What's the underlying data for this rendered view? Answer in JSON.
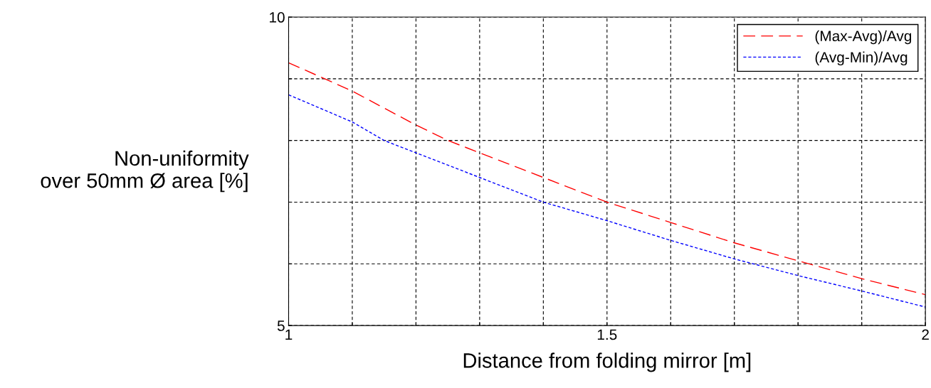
{
  "chart_data": {
    "type": "line",
    "xlabel": "Distance from folding mirror [m]",
    "ylabel": "Non-uniformity\nover 50mm Ø area [%]",
    "xlim": [
      1,
      2
    ],
    "ylim": [
      5,
      10
    ],
    "xticks": [
      1,
      {
        "value": 1.1,
        "label": null
      },
      {
        "value": 1.2,
        "label": null
      },
      {
        "value": 1.3,
        "label": null
      },
      {
        "value": 1.4,
        "label": null
      },
      1.5,
      {
        "value": 1.6,
        "label": null
      },
      {
        "value": 1.7,
        "label": null
      },
      {
        "value": 1.8,
        "label": null
      },
      {
        "value": 1.9,
        "label": null
      },
      2
    ],
    "yticks": [
      5,
      {
        "value": 6,
        "label": null
      },
      {
        "value": 7,
        "label": null
      },
      {
        "value": 8,
        "label": null
      },
      {
        "value": 9,
        "label": null
      },
      10
    ],
    "grid": true,
    "legend": "top right",
    "series": [
      {
        "name": "(Max-Avg)/Avg",
        "color": "#ff0000",
        "line_style": "dashed",
        "x": [
          1,
          1.1,
          1.2,
          1.25,
          1.3,
          1.4,
          1.5,
          1.6,
          1.7,
          1.8,
          1.9,
          2
        ],
        "values": [
          9.26,
          8.8,
          8.25,
          8.0,
          7.8,
          7.4,
          7.0,
          6.67,
          6.34,
          6.05,
          5.76,
          5.5
        ]
      },
      {
        "name": "(Avg-Min)/Avg",
        "color": "#0000ff",
        "line_style": "dotted",
        "x": [
          1,
          1.1,
          1.15,
          1.2,
          1.3,
          1.4,
          1.5,
          1.6,
          1.7,
          1.8,
          1.9,
          2
        ],
        "values": [
          8.74,
          8.3,
          8.0,
          7.8,
          7.4,
          7.0,
          6.7,
          6.38,
          6.08,
          5.81,
          5.56,
          5.3
        ]
      }
    ]
  }
}
